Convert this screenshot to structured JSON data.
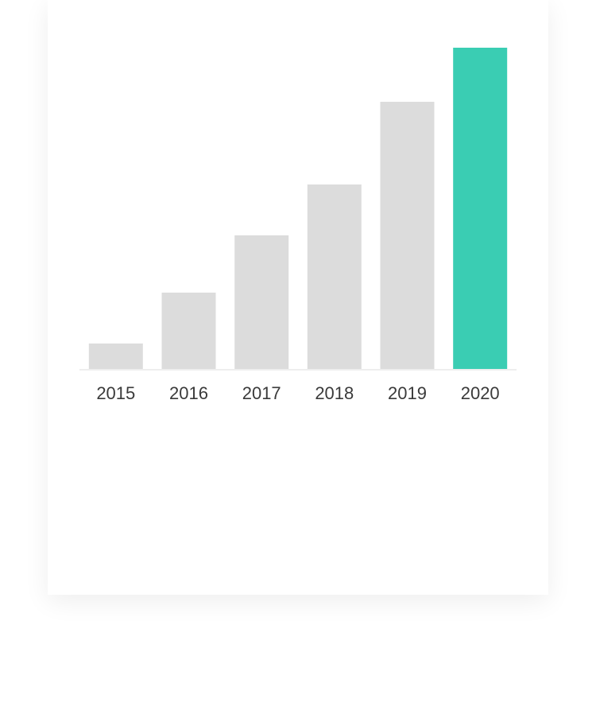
{
  "chart_data": {
    "type": "bar",
    "categories": [
      "2015",
      "2016",
      "2017",
      "2018",
      "2019",
      "2020"
    ],
    "values": [
      8,
      24,
      42,
      58,
      84,
      101
    ],
    "ylim": [
      0,
      101
    ],
    "grid": false,
    "colors": {
      "default_bar": "#dcdcdc",
      "highlight_bar": "#3acdb3",
      "baseline": "#eeeeee"
    },
    "highlight_index": 5
  }
}
